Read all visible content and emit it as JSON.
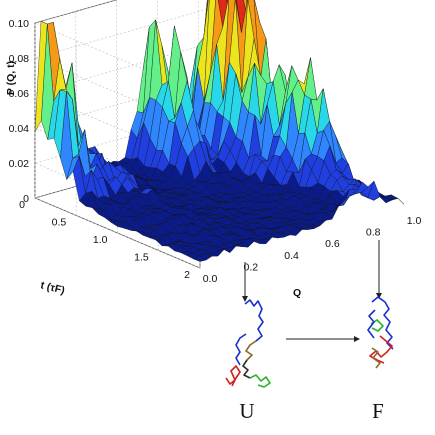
{
  "chart_data": {
    "type": "surface",
    "zlabel": "P (Q, t)",
    "xlabel": "Q",
    "ylabel": "t (τF)",
    "xlim": [
      0.0,
      1.0
    ],
    "ylim": [
      0,
      2
    ],
    "zlim": [
      0,
      0.1
    ],
    "x_ticks": [
      "0.0",
      "0.2",
      "0.4",
      "0.6",
      "0.8",
      "1.0"
    ],
    "y_ticks": [
      "0",
      "0.5",
      "1.0",
      "1.5",
      "2"
    ],
    "z_ticks": [
      "0",
      "0.02",
      "0.04",
      "0.06",
      "0.08",
      "0.10"
    ],
    "grid": true,
    "colormap": [
      "#0a1b8c",
      "#1f3fe0",
      "#2f86ff",
      "#28d7e8",
      "#63f08a",
      "#ece51e",
      "#f49a17",
      "#e0291b",
      "#8c1200"
    ],
    "peaks": [
      {
        "Q": 0.05,
        "t": 0.05,
        "P": 0.09
      },
      {
        "Q": 0.88,
        "t": 0.1,
        "P": 0.08
      },
      {
        "Q": 0.8,
        "t": 0.4,
        "P": 0.075
      },
      {
        "Q": 0.55,
        "t": 0.2,
        "P": 0.07
      },
      {
        "Q": 0.85,
        "t": 1.2,
        "P": 0.05
      }
    ],
    "states": [
      {
        "label": "U",
        "Q": 0.2
      },
      {
        "label": "F",
        "Q": 0.85
      }
    ]
  }
}
